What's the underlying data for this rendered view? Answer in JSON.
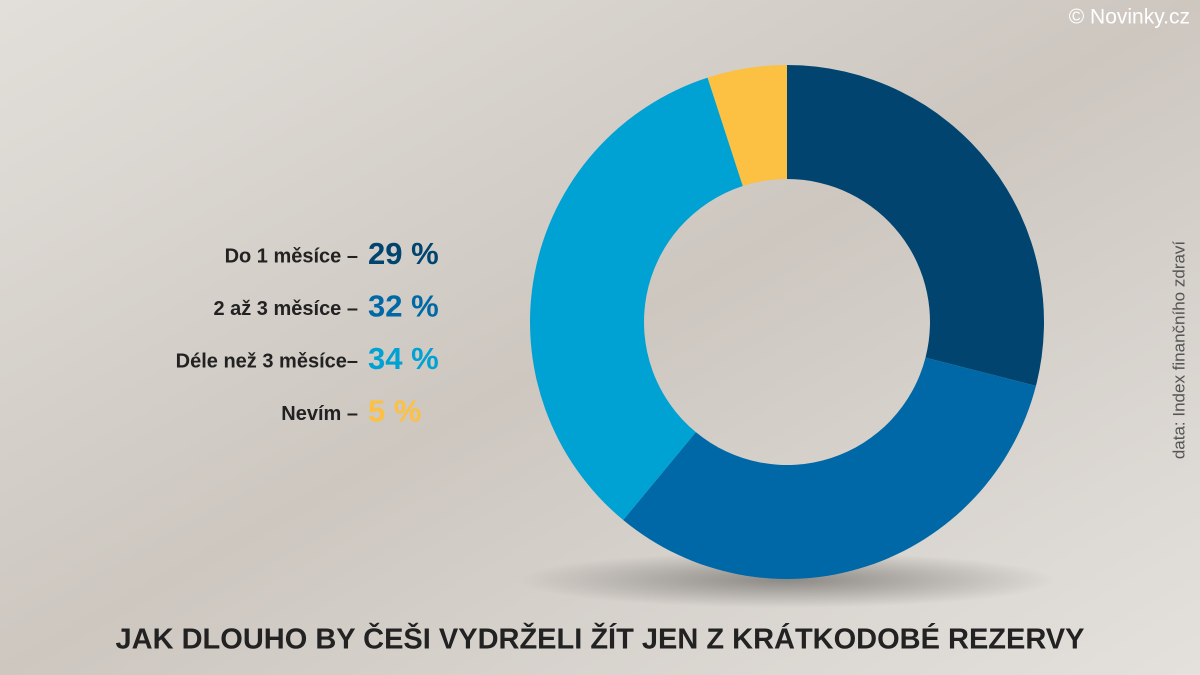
{
  "chart_data": {
    "type": "donut",
    "title": "JAK DLOUHO BY ČEŠI VYDRŽELI ŽÍT JEN Z KRÁTKODOBÉ REZERVY",
    "source": "data: Index finančního zdraví",
    "credit": "© Novinky.cz",
    "categories": [
      "Do 1 měsíce –",
      "2 až 3 měsíce –",
      "Déle než 3 měsíce–",
      "Nevím –"
    ],
    "values": [
      29,
      32,
      34,
      5
    ],
    "value_labels": [
      "29 %",
      "32 %",
      "34 %",
      "5 %"
    ],
    "colors": [
      "#00446f",
      "#0068a6",
      "#00a1d3",
      "#fcc043"
    ]
  }
}
